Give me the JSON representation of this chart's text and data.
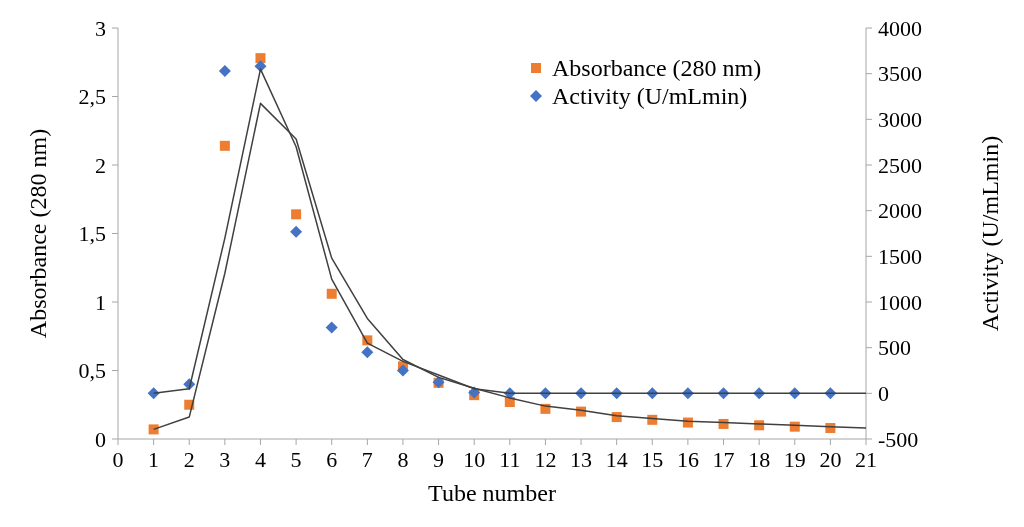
{
  "chart_data": {
    "type": "scatter",
    "xlabel": "Tube number",
    "ylabel": "Absorbance (280 nm)",
    "y2label": "Activity (U/mLmin)",
    "x": [
      1,
      2,
      3,
      4,
      5,
      6,
      7,
      8,
      9,
      10,
      11,
      12,
      13,
      14,
      15,
      16,
      17,
      18,
      19,
      20
    ],
    "series": [
      {
        "name": "Absorbance (280 nm)",
        "color": "#ed7d31",
        "marker": "square",
        "values": [
          0.07,
          0.25,
          2.14,
          2.78,
          1.64,
          1.06,
          0.72,
          0.53,
          0.41,
          0.32,
          0.27,
          0.22,
          0.2,
          0.16,
          0.14,
          0.12,
          0.11,
          0.1,
          0.09,
          0.08
        ]
      },
      {
        "name": "Activity (U/mLmin)",
        "color": "#4472c4",
        "marker": "diamond",
        "axis": "y2",
        "values": [
          0,
          100,
          3530,
          3580,
          1770,
          720,
          450,
          250,
          120,
          10,
          0,
          0,
          0,
          0,
          0,
          0,
          0,
          0,
          0,
          0
        ]
      },
      {
        "type": "line",
        "color": "#404040",
        "marker": "none",
        "x": [
          1,
          2,
          3,
          4,
          5,
          6,
          7,
          8,
          9,
          10,
          11,
          12,
          13,
          14,
          15,
          16,
          17,
          18,
          19,
          20,
          21
        ],
        "values": [
          0.07,
          0.16,
          1.21,
          2.45,
          2.19,
          1.32,
          0.88,
          0.58,
          0.45,
          0.37,
          0.3,
          0.24,
          0.21,
          0.17,
          0.15,
          0.13,
          0.12,
          0.11,
          0.1,
          0.09,
          0.08
        ]
      },
      {
        "type": "line",
        "color": "#404040",
        "marker": "none",
        "axis": "y2",
        "x": [
          1,
          2,
          3,
          4,
          5,
          6,
          7,
          8,
          9,
          10,
          11,
          12,
          13,
          14,
          15,
          16,
          17,
          18,
          19,
          20,
          21
        ],
        "values": [
          0,
          50,
          1700,
          3550,
          2700,
          1250,
          550,
          350,
          200,
          50,
          0,
          0,
          0,
          0,
          0,
          0,
          0,
          0,
          0,
          0,
          0
        ]
      }
    ],
    "xlim": [
      0,
      21
    ],
    "xticks": [
      0,
      1,
      2,
      3,
      4,
      5,
      6,
      7,
      8,
      9,
      10,
      11,
      12,
      13,
      14,
      15,
      16,
      17,
      18,
      19,
      20,
      21
    ],
    "ylim": [
      0,
      3
    ],
    "yticks": [
      0,
      {
        "value": 0.5,
        "label": "0,5"
      },
      1,
      {
        "value": 1.5,
        "label": "1,5"
      },
      2,
      {
        "value": 2.5,
        "label": "2,5"
      },
      3
    ],
    "y2lim": [
      -500,
      4000
    ],
    "y2ticks": [
      -500,
      0,
      500,
      1000,
      1500,
      2000,
      2500,
      3000,
      3500,
      4000
    ],
    "legend": "top right",
    "grid": false
  }
}
